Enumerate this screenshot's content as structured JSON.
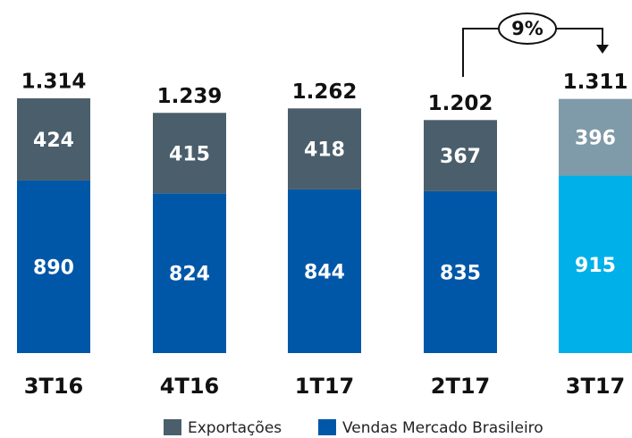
{
  "chart_data": {
    "type": "stacked_bar",
    "categories": [
      "3T16",
      "4T16",
      "1T17",
      "2T17",
      "3T17"
    ],
    "series": [
      {
        "name": "Vendas Mercado Brasileiro",
        "color": "#0057a8",
        "point_colors": [
          "#0057a8",
          "#0057a8",
          "#0057a8",
          "#0057a8",
          "#00b0e8"
        ],
        "values": [
          890,
          824,
          844,
          835,
          915
        ]
      },
      {
        "name": "Exportações",
        "color": "#4a5f6b",
        "point_colors": [
          "#4a5f6b",
          "#4a5f6b",
          "#4a5f6b",
          "#4a5f6b",
          "#7f9aa8"
        ],
        "values": [
          424,
          415,
          418,
          367,
          396
        ]
      }
    ],
    "totals": {
      "values": [
        1314,
        1239,
        1262,
        1202,
        1311
      ],
      "value_labels": [
        "1.314",
        "1.239",
        "1.262",
        "1.202",
        "1.311"
      ]
    },
    "annotation": "9%",
    "legend": "bottom"
  }
}
